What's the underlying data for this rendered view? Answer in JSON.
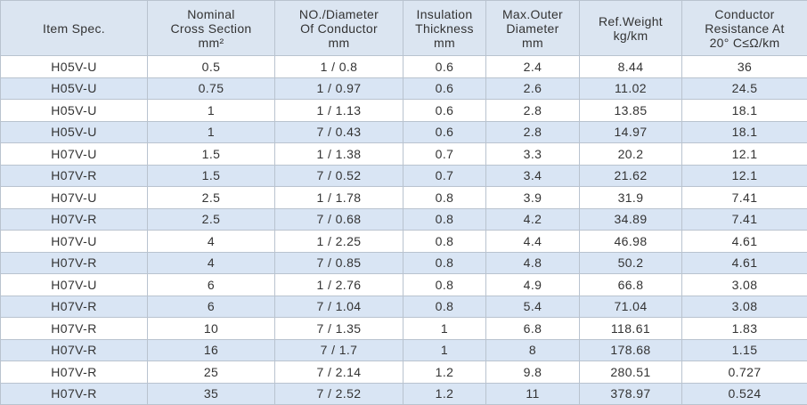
{
  "table": {
    "columns": [
      [
        "Item Spec."
      ],
      [
        "Nominal",
        "Cross Section",
        "mm²"
      ],
      [
        "NO./Diameter",
        "Of Conductor",
        "mm"
      ],
      [
        "Insulation",
        "Thickness",
        "mm"
      ],
      [
        "Max.Outer",
        "Diameter",
        "mm"
      ],
      [
        "Ref.Weight",
        "kg/km"
      ],
      [
        "Conductor",
        "Resistance At",
        "20° C≤Ω/km"
      ]
    ],
    "rows": [
      [
        "H05V-U",
        "0.5",
        "1 / 0.8",
        "0.6",
        "2.4",
        "8.44",
        "36"
      ],
      [
        "H05V-U",
        "0.75",
        "1 / 0.97",
        "0.6",
        "2.6",
        "11.02",
        "24.5"
      ],
      [
        "H05V-U",
        "1",
        "1 / 1.13",
        "0.6",
        "2.8",
        "13.85",
        "18.1"
      ],
      [
        "H05V-U",
        "1",
        "7 / 0.43",
        "0.6",
        "2.8",
        "14.97",
        "18.1"
      ],
      [
        "H07V-U",
        "1.5",
        "1 / 1.38",
        "0.7",
        "3.3",
        "20.2",
        "12.1"
      ],
      [
        "H07V-R",
        "1.5",
        "7 / 0.52",
        "0.7",
        "3.4",
        "21.62",
        "12.1"
      ],
      [
        "H07V-U",
        "2.5",
        "1 / 1.78",
        "0.8",
        "3.9",
        "31.9",
        "7.41"
      ],
      [
        "H07V-R",
        "2.5",
        "7 / 0.68",
        "0.8",
        "4.2",
        "34.89",
        "7.41"
      ],
      [
        "H07V-U",
        "4",
        "1 / 2.25",
        "0.8",
        "4.4",
        "46.98",
        "4.61"
      ],
      [
        "H07V-R",
        "4",
        "7 / 0.85",
        "0.8",
        "4.8",
        "50.2",
        "4.61"
      ],
      [
        "H07V-U",
        "6",
        "1 / 2.76",
        "0.8",
        "4.9",
        "66.8",
        "3.08"
      ],
      [
        "H07V-R",
        "6",
        "7 / 1.04",
        "0.8",
        "5.4",
        "71.04",
        "3.08"
      ],
      [
        "H07V-R",
        "10",
        "7 / 1.35",
        "1",
        "6.8",
        "118.61",
        "1.83"
      ],
      [
        "H07V-R",
        "16",
        "7 / 1.7",
        "1",
        "8",
        "178.68",
        "1.15"
      ],
      [
        "H07V-R",
        "25",
        "7 / 2.14",
        "1.2",
        "9.8",
        "280.51",
        "0.727"
      ],
      [
        "H07V-R",
        "35",
        "7 / 2.52",
        "1.2",
        "11",
        "378.97",
        "0.524"
      ]
    ]
  }
}
